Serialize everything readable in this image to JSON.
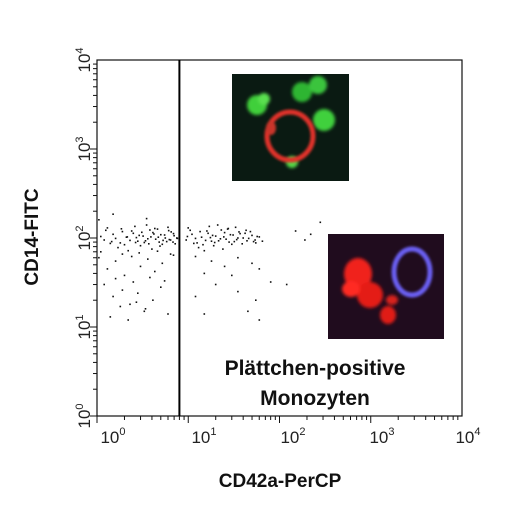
{
  "chart_data": {
    "type": "scatter",
    "title": "",
    "xlabel": "CD42a-PerCP",
    "ylabel": "CD14-FITC",
    "xscale": "log",
    "yscale": "log",
    "xlim": [
      1,
      10000
    ],
    "ylim": [
      1,
      10000
    ],
    "x_ticks": [
      {
        "base": "10",
        "exp": "0"
      },
      {
        "base": "10",
        "exp": "1"
      },
      {
        "base": "10",
        "exp": "2"
      },
      {
        "base": "10",
        "exp": "3"
      },
      {
        "base": "10",
        "exp": "4"
      }
    ],
    "y_ticks": [
      {
        "base": "10",
        "exp": "0"
      },
      {
        "base": "10",
        "exp": "1"
      },
      {
        "base": "10",
        "exp": "2"
      },
      {
        "base": "10",
        "exp": "3"
      },
      {
        "base": "10",
        "exp": "4"
      }
    ],
    "gate_x": 8,
    "annotation": [
      "Plättchen-positive",
      "Monozyten"
    ],
    "grid": false,
    "point_color": "#111111",
    "points": [
      [
        1.2,
        95
      ],
      [
        1.5,
        110
      ],
      [
        1.8,
        88
      ],
      [
        2.1,
        102
      ],
      [
        2.4,
        120
      ],
      [
        2.8,
        92
      ],
      [
        3.2,
        105
      ],
      [
        3.6,
        98
      ],
      [
        4.1,
        115
      ],
      [
        4.8,
        90
      ],
      [
        5.5,
        108
      ],
      [
        6.2,
        96
      ],
      [
        6.9,
        112
      ],
      [
        7.5,
        100
      ],
      [
        1.3,
        130
      ],
      [
        1.7,
        78
      ],
      [
        2.2,
        72
      ],
      [
        2.6,
        135
      ],
      [
        3.0,
        82
      ],
      [
        3.5,
        140
      ],
      [
        4.0,
        75
      ],
      [
        4.6,
        126
      ],
      [
        5.2,
        85
      ],
      [
        6.0,
        132
      ],
      [
        1.1,
        104
      ],
      [
        1.4,
        87
      ],
      [
        1.9,
        118
      ],
      [
        2.3,
        94
      ],
      [
        2.7,
        101
      ],
      [
        3.3,
        89
      ],
      [
        3.8,
        123
      ],
      [
        4.4,
        97
      ],
      [
        5.0,
        109
      ],
      [
        5.8,
        91
      ],
      [
        6.5,
        117
      ],
      [
        7.2,
        86
      ],
      [
        1.25,
        122
      ],
      [
        1.6,
        99
      ],
      [
        2.0,
        84
      ],
      [
        2.5,
        113
      ],
      [
        2.9,
        107
      ],
      [
        3.4,
        93
      ],
      [
        3.9,
        103
      ],
      [
        4.3,
        128
      ],
      [
        4.9,
        81
      ],
      [
        5.6,
        100
      ],
      [
        6.4,
        95
      ],
      [
        7.0,
        106
      ],
      [
        1.45,
        91
      ],
      [
        1.85,
        127
      ],
      [
        2.15,
        103
      ],
      [
        2.65,
        89
      ],
      [
        3.1,
        116
      ],
      [
        3.7,
        86
      ],
      [
        4.2,
        111
      ],
      [
        4.7,
        102
      ],
      [
        5.3,
        94
      ],
      [
        6.1,
        121
      ],
      [
        6.8,
        90
      ],
      [
        7.6,
        99
      ],
      [
        1.05,
        60
      ],
      [
        1.3,
        45
      ],
      [
        1.6,
        55
      ],
      [
        2.0,
        38
      ],
      [
        2.4,
        62
      ],
      [
        3.0,
        48
      ],
      [
        3.6,
        58
      ],
      [
        4.3,
        42
      ],
      [
        5.2,
        52
      ],
      [
        6.4,
        66
      ],
      [
        1.2,
        30
      ],
      [
        1.5,
        22
      ],
      [
        1.9,
        26
      ],
      [
        2.3,
        18
      ],
      [
        2.8,
        24
      ],
      [
        3.4,
        16
      ],
      [
        4.1,
        20
      ],
      [
        5.0,
        28
      ],
      [
        6.0,
        14
      ],
      [
        1.4,
        13
      ],
      [
        1.8,
        17
      ],
      [
        2.2,
        12
      ],
      [
        2.7,
        19
      ],
      [
        3.3,
        15
      ],
      [
        1.6,
        35
      ],
      [
        2.5,
        32
      ],
      [
        3.8,
        36
      ],
      [
        5.5,
        33
      ],
      [
        1.1,
        70
      ],
      [
        1.9,
        66
      ],
      [
        2.9,
        68
      ],
      [
        4.6,
        71
      ],
      [
        6.9,
        64
      ],
      [
        1.5,
        185
      ],
      [
        3.5,
        165
      ],
      [
        1.05,
        160
      ],
      [
        9.5,
        95
      ],
      [
        11,
        110
      ],
      [
        12.5,
        88
      ],
      [
        14,
        102
      ],
      [
        16,
        120
      ],
      [
        18,
        92
      ],
      [
        20,
        105
      ],
      [
        22.5,
        98
      ],
      [
        25,
        115
      ],
      [
        28,
        90
      ],
      [
        31,
        108
      ],
      [
        34,
        96
      ],
      [
        37,
        112
      ],
      [
        40,
        100
      ],
      [
        44,
        93
      ],
      [
        48,
        118
      ],
      [
        52,
        91
      ],
      [
        57,
        104
      ],
      [
        10,
        130
      ],
      [
        13,
        78
      ],
      [
        15,
        72
      ],
      [
        17,
        135
      ],
      [
        19,
        82
      ],
      [
        21,
        140
      ],
      [
        24,
        75
      ],
      [
        27,
        126
      ],
      [
        30,
        85
      ],
      [
        33,
        132
      ],
      [
        9.8,
        104
      ],
      [
        11.5,
        87
      ],
      [
        13.5,
        118
      ],
      [
        15.5,
        94
      ],
      [
        17.5,
        101
      ],
      [
        19.5,
        89
      ],
      [
        23,
        123
      ],
      [
        26,
        97
      ],
      [
        29,
        109
      ],
      [
        32,
        91
      ],
      [
        36,
        117
      ],
      [
        39,
        86
      ],
      [
        42,
        113
      ],
      [
        46,
        99
      ],
      [
        50,
        107
      ],
      [
        54,
        95
      ],
      [
        60,
        103
      ],
      [
        65,
        92
      ],
      [
        10.5,
        122
      ],
      [
        12,
        99
      ],
      [
        14.5,
        84
      ],
      [
        16.5,
        113
      ],
      [
        18.5,
        107
      ],
      [
        21.5,
        93
      ],
      [
        24.5,
        103
      ],
      [
        27.5,
        128
      ],
      [
        35,
        100
      ],
      [
        43,
        122
      ],
      [
        55,
        88
      ],
      [
        12,
        62
      ],
      [
        18,
        55
      ],
      [
        25,
        48
      ],
      [
        35,
        60
      ],
      [
        50,
        52
      ],
      [
        15,
        40
      ],
      [
        30,
        38
      ],
      [
        60,
        45
      ],
      [
        12,
        22
      ],
      [
        20,
        30
      ],
      [
        35,
        25
      ],
      [
        55,
        20
      ],
      [
        80,
        32
      ],
      [
        15,
        14
      ],
      [
        45,
        15
      ],
      [
        120,
        30
      ],
      [
        60,
        12
      ],
      [
        150,
        120
      ],
      [
        220,
        110
      ],
      [
        280,
        150
      ],
      [
        190,
        95
      ]
    ]
  },
  "images": [
    {
      "name": "confocal-green-red"
    },
    {
      "name": "confocal-red-blue"
    }
  ]
}
